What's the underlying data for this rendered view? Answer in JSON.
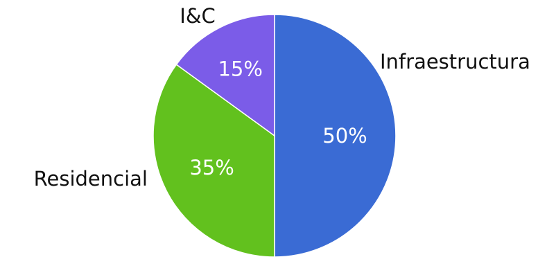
{
  "chart_data": {
    "type": "pie",
    "title": "",
    "categories": [
      "Infraestructura",
      "Residencial",
      "I&C"
    ],
    "values": [
      50,
      35,
      15
    ],
    "value_labels": [
      "50%",
      "35%",
      "15%"
    ],
    "colors": [
      "#3a6bd4",
      "#62c11e",
      "#7b5ce8"
    ],
    "start_angle": "12 o'clock",
    "direction": "clockwise",
    "slice_border_color": "#ffffff",
    "legend": "none"
  }
}
